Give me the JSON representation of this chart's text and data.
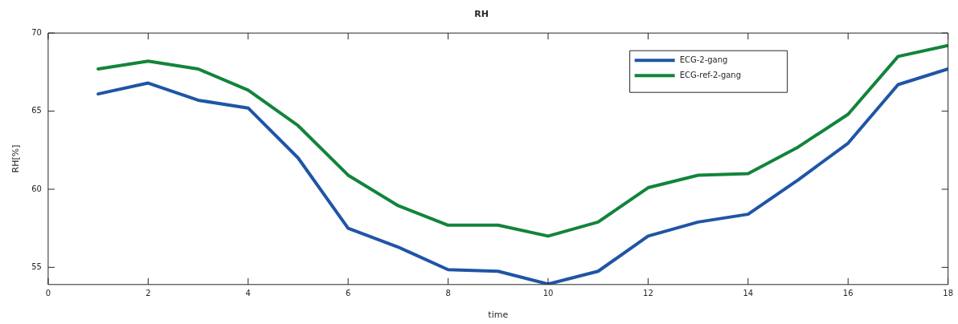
{
  "chart_data": {
    "type": "line",
    "title": "RH",
    "xlabel": "time",
    "ylabel": "RH[%]",
    "x": [
      1,
      2,
      3,
      4,
      5,
      6,
      7,
      8,
      9,
      10,
      11,
      12,
      13,
      14,
      15,
      16,
      17,
      18
    ],
    "series": [
      {
        "name": "ECG-2-gang",
        "color": "#1f55a5",
        "values": [
          66.1,
          66.8,
          65.7,
          65.2,
          62.0,
          57.5,
          56.3,
          54.85,
          54.75,
          53.93,
          54.75,
          57.0,
          57.9,
          58.4,
          60.6,
          62.95,
          66.7,
          67.7
        ]
      },
      {
        "name": "ECG-ref-2-gang",
        "color": "#12843b",
        "values": [
          67.7,
          68.2,
          67.7,
          66.35,
          64.07,
          60.9,
          58.95,
          57.7,
          57.7,
          57.0,
          57.9,
          60.1,
          60.9,
          61.0,
          62.7,
          64.8,
          68.5,
          69.2
        ]
      }
    ],
    "xlim": [
      0,
      18
    ],
    "xticks": [
      0,
      2,
      4,
      6,
      8,
      10,
      12,
      14,
      16,
      18
    ],
    "ylim": [
      53.9,
      70
    ],
    "yticks": [
      55,
      60,
      65,
      70
    ],
    "grid": false,
    "legend": "top right",
    "marker": "none",
    "line_style": "solid"
  }
}
